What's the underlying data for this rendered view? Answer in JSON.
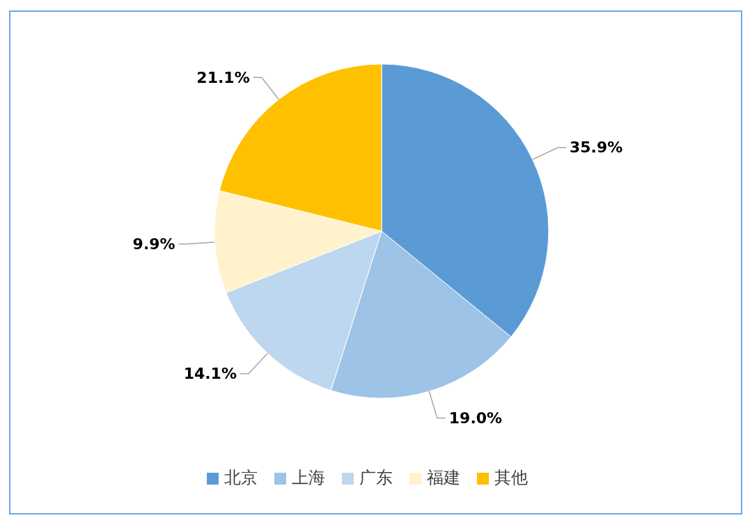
{
  "chart_data": {
    "type": "pie",
    "categories": [
      "北京",
      "上海",
      "广东",
      "福建",
      "其他"
    ],
    "values": [
      35.9,
      19.0,
      14.1,
      9.9,
      21.1
    ],
    "colors": [
      "#5b9bd5",
      "#9dc3e6",
      "#bdd7ee",
      "#fff2cc",
      "#ffc000"
    ],
    "value_labels": [
      "35.9%",
      "19.0%",
      "14.1%",
      "9.9%",
      "21.1%"
    ],
    "legend": "bottom"
  }
}
